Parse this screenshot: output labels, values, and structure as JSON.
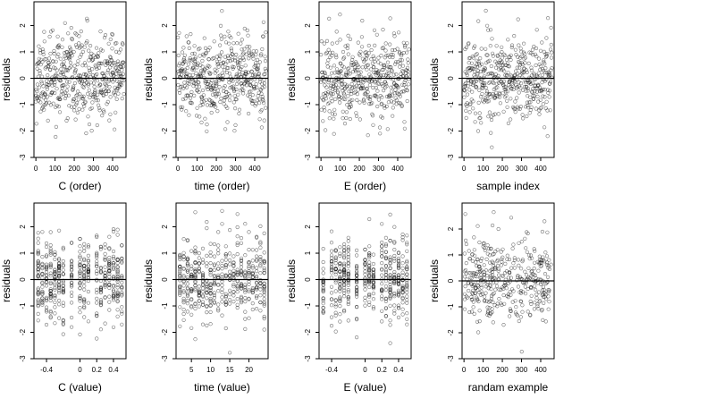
{
  "chart_data": [
    {
      "type": "scatter",
      "xlabel": "C (order)",
      "ylabel": "residuals",
      "xlim": [
        -10,
        470
      ],
      "ylim": [
        -3,
        2.9
      ],
      "xticks": [
        0,
        100,
        200,
        300,
        400
      ],
      "yticks": [
        -3,
        -2,
        -1,
        0,
        1,
        2
      ],
      "hline": 0,
      "grid": false,
      "pattern": "index",
      "n": 460,
      "seed": 11
    },
    {
      "type": "scatter",
      "xlabel": "time (order)",
      "ylabel": "residuals",
      "xlim": [
        -10,
        470
      ],
      "ylim": [
        -3,
        2.9
      ],
      "xticks": [
        0,
        100,
        200,
        300,
        400
      ],
      "yticks": [
        -3,
        -2,
        -1,
        0,
        1,
        2
      ],
      "hline": 0,
      "grid": false,
      "pattern": "index",
      "n": 460,
      "seed": 23
    },
    {
      "type": "scatter",
      "xlabel": "E (order)",
      "ylabel": "residuals",
      "xlim": [
        -10,
        470
      ],
      "ylim": [
        -3,
        2.9
      ],
      "xticks": [
        0,
        100,
        200,
        300,
        400
      ],
      "yticks": [
        -3,
        -2,
        -1,
        0,
        1,
        2
      ],
      "hline": 0,
      "grid": false,
      "pattern": "index",
      "n": 460,
      "seed": 37
    },
    {
      "type": "scatter",
      "xlabel": "sample index",
      "ylabel": "residuals",
      "xlim": [
        -10,
        470
      ],
      "ylim": [
        -3,
        2.9
      ],
      "xticks": [
        0,
        100,
        200,
        300,
        400
      ],
      "yticks": [
        -3,
        -2,
        -1,
        0,
        1,
        2
      ],
      "hline": 0,
      "grid": false,
      "pattern": "index",
      "n": 460,
      "seed": 41
    },
    {
      "type": "scatter",
      "xlabel": "C (value)",
      "ylabel": "residuals",
      "xlim": [
        -0.55,
        0.55
      ],
      "ylim": [
        -3,
        2.9
      ],
      "xticks": [
        -0.4,
        0.0,
        0.2,
        0.4
      ],
      "yticks": [
        -3,
        -2,
        -1,
        0,
        1,
        2
      ],
      "hline": 0,
      "grid": false,
      "pattern": "levels",
      "levels": [
        -0.5,
        -0.45,
        -0.4,
        -0.35,
        -0.3,
        -0.25,
        -0.2,
        -0.1,
        0.0,
        0.05,
        0.1,
        0.2,
        0.25,
        0.3,
        0.35,
        0.4,
        0.45,
        0.5
      ],
      "n": 460,
      "seed": 53
    },
    {
      "type": "scatter",
      "xlabel": "time (value)",
      "ylabel": "residuals",
      "xlim": [
        1,
        25
      ],
      "ylim": [
        -3,
        2.9
      ],
      "xticks": [
        5,
        10,
        15,
        20
      ],
      "yticks": [
        -3,
        -2,
        -1,
        0,
        1,
        2
      ],
      "hline": 0,
      "grid": false,
      "pattern": "levels",
      "levels": [
        2,
        3,
        4,
        5,
        6,
        7,
        8,
        9,
        10,
        11,
        12,
        13,
        14,
        15,
        16,
        17,
        18,
        19,
        20,
        21,
        22,
        23,
        24
      ],
      "n": 460,
      "seed": 67
    },
    {
      "type": "scatter",
      "xlabel": "E (value)",
      "ylabel": "residuals",
      "xlim": [
        -0.55,
        0.55
      ],
      "ylim": [
        -3,
        2.9
      ],
      "xticks": [
        -0.4,
        0.0,
        0.2,
        0.4
      ],
      "yticks": [
        -3,
        -2,
        -1,
        0,
        1,
        2
      ],
      "hline": 0,
      "grid": false,
      "pattern": "levels",
      "levels": [
        -0.5,
        -0.4,
        -0.35,
        -0.3,
        -0.25,
        -0.2,
        -0.1,
        0.0,
        0.05,
        0.1,
        0.2,
        0.25,
        0.3,
        0.35,
        0.4,
        0.45,
        0.5
      ],
      "n": 460,
      "seed": 79
    },
    {
      "type": "scatter",
      "xlabel": "randam example",
      "ylabel": "residuals",
      "xlim": [
        -10,
        470
      ],
      "ylim": [
        -3,
        3
      ],
      "xticks": [
        0,
        100,
        200,
        300,
        400
      ],
      "yticks": [
        -3,
        -2,
        -1,
        0,
        1,
        2
      ],
      "hline": 0,
      "grid": false,
      "pattern": "random",
      "n": 400,
      "seed": 97
    }
  ]
}
